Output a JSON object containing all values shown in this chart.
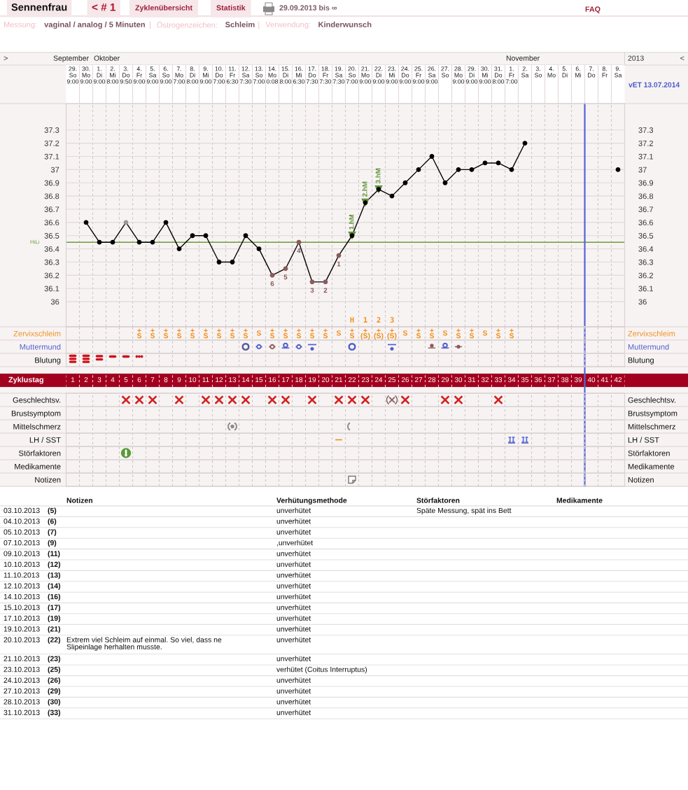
{
  "chart_data": [
    {
      "type": "other",
      "annotations": [
        "Sennenfrau",
        "< # 1",
        "Zyklenübersicht",
        "Statistik",
        "29.09.2013 bis ∞",
        "FAQ",
        "Messung:",
        "vaginal / analog / 5 Minuten",
        "|",
        "Östrogenzeichen:",
        "Schleim",
        "|",
        "Verwendung:",
        "Kinderwunsch"
      ]
    },
    {
      "type": "line",
      "categories": [
        "29.\nSo\n9:00",
        "30.\nMo\n9:00",
        "1.\nDi\n9:00",
        "2.\nMi\n8:00",
        "3.\nDo\n9:50",
        "4.\nFr\n9:00",
        "5.\nSa\n9:00",
        "6.\nSo\n9:00",
        "7.\nMo\n7:00",
        "8.\nDi\n8:00",
        "9.\nMi\n9:00",
        "10.\nDo\n7:00",
        "11.\nFr\n6:30",
        "12.\nSa\n7:30",
        "13.\nSo\n7:00",
        "14.\nMo\n0:08",
        "15.\nDi\n8:00",
        "16.\nMi\n6:30",
        "17.\nDo\n7:30",
        "18.\nFr\n7:30",
        "19.\nSa\n7:30",
        "20.\nSo\n7:00",
        "21.\nMo\n9:00",
        "22.\nDi\n9:00",
        "23.\nMi\n9:00",
        "24.\nDo\n9:00",
        "25.\nFr\n9:00",
        "26.\nSa\n9:00",
        "27.\nSo",
        "28.\nMo\n9:00",
        "29.\nDi\n9:00",
        "30.\nMi\n9:00",
        "31.\nDo\n8:00",
        "1.\nFr\n7:00",
        "2.\nSa",
        "3.\nSo",
        "4.\nMo",
        "5.\nDi",
        "6.\nMi",
        "7.\nDo",
        "8.\nFr",
        "9.\nSa"
      ],
      "ylim": [
        35.81,
        37.5
      ],
      "yticks": [
        36,
        36.1,
        36.2,
        36.3,
        36.4,
        36.5,
        36.6,
        36.7,
        36.8,
        36.9,
        37,
        37.1,
        37.2,
        37.3
      ],
      "y2lim": [
        35.81,
        37.5
      ],
      "y2ticks": [
        36,
        36.1,
        36.2,
        36.3,
        36.4,
        36.5,
        36.6,
        36.7,
        36.8,
        36.9,
        37,
        37.1,
        37.2,
        37.3
      ],
      "ref_lines": [
        {
          "axis": "y",
          "value": 36.45,
          "label": "HiLi",
          "color": "#6a9a3a"
        },
        {
          "axis": "x",
          "value": "7.\nDo",
          "color": "#5566d4"
        }
      ],
      "grid": "y",
      "marker": "circle",
      "series": [
        {
          "color": "#000000",
          "values": [
            null,
            36.6,
            36.45,
            36.45,
            36.6,
            36.45,
            36.45,
            36.6,
            36.4,
            36.5,
            36.5,
            36.3,
            36.3,
            36.5,
            36.4,
            36.2,
            36.25,
            36.45,
            36.15,
            36.15,
            36.35,
            36.5,
            36.75,
            36.85,
            36.8,
            36.9,
            37,
            37.1,
            36.9,
            37,
            37,
            37.05,
            37.05,
            37,
            37.2,
            null,
            null,
            null,
            null,
            null,
            null,
            37
          ],
          "colors": [
            "#000000",
            "#000000",
            "#000000",
            "#000000",
            "#999999",
            "#000000",
            "#000000",
            "#000000",
            "#000000",
            "#000000",
            "#000000",
            "#000000",
            "#000000",
            "#000000",
            "#000000",
            "#8c5a5a",
            "#8c5a5a",
            "#8c5a5a",
            "#8c5a5a",
            "#8c5a5a",
            "#8c5a5a",
            "#000000",
            "#000000",
            "#000000",
            "#000000",
            "#000000",
            "#000000",
            "#000000",
            "#000000",
            "#000000",
            "#000000",
            "#000000",
            "#000000",
            "#000000",
            "#000000",
            "#000000",
            "#000000",
            "#000000",
            "#000000",
            "#000000",
            "#000000",
            "#000000"
          ]
        },
        {
          "type": "scatter",
          "x": [
            "20.\nSo\n7:00",
            "21.\nMo\n9:00",
            "22.\nDi\n9:00"
          ],
          "values": [
            36.5,
            36.75,
            36.85
          ],
          "color": "#5f9436",
          "marker": "triangle"
        }
      ],
      "annotations": [
        {
          "text": "6",
          "x": "14.\nMo\n0:08",
          "y": 36.2
        },
        {
          "text": "5",
          "x": "15.\nDi\n8:00",
          "y": 36.25
        },
        {
          "text": "4",
          "x": "16.\nMi\n6:30",
          "y": 36.45
        },
        {
          "text": "3",
          "x": "17.\nDo\n7:30",
          "y": 36.15
        },
        {
          "text": "2",
          "x": "18.\nFr\n7:30",
          "y": 36.15
        },
        {
          "text": "1",
          "x": "19.\nSa\n7:30",
          "y": 36.35
        },
        {
          "text": "1.hM",
          "x": "20.\nSo\n7:00",
          "y": 36.5
        },
        {
          "text": "2.hM",
          "x": "21.\nMo\n9:00",
          "y": 36.75
        },
        {
          "text": "3.hM",
          "x": "22.\nDi\n9:00",
          "y": 36.85
        },
        ">",
        "September",
        "Oktober",
        "November",
        "2013",
        "<",
        "vET 13.07.2014",
        "H  1  2  3"
      ]
    },
    {
      "type": "heatmap",
      "categories": [
        null,
        null,
        null,
        null,
        null,
        null,
        null,
        null,
        null,
        null,
        null,
        null,
        null,
        null,
        null,
        null,
        null,
        null,
        null,
        null,
        null,
        null,
        null,
        null,
        null,
        null,
        null,
        null,
        null,
        null,
        null,
        null,
        null,
        null,
        null,
        null,
        null,
        null,
        null,
        null,
        null,
        null
      ],
      "y_categories": [
        "Zervixschleim",
        "Muttermund",
        "Blutung"
      ],
      "y2_categories": [
        "Zervixschleim",
        "Muttermund",
        "Blutung"
      ],
      "cells": [
        [
          null,
          null,
          null,
          null,
          null,
          null,
          null,
          null,
          null,
          null,
          null,
          null,
          null,
          null,
          null,
          null,
          null,
          null,
          null,
          null,
          null,
          null,
          null,
          null,
          null,
          null,
          null,
          null,
          null,
          null,
          null,
          null,
          null,
          null,
          null,
          null,
          null,
          null,
          null,
          null,
          null,
          null
        ],
        [
          null,
          null,
          null,
          null,
          null,
          null,
          null,
          null,
          null,
          null,
          null,
          null,
          null,
          null,
          null,
          null,
          null,
          null,
          null,
          null,
          null,
          null,
          null,
          null,
          null,
          null,
          null,
          null,
          null,
          null,
          null,
          null,
          null,
          null,
          null,
          null,
          null,
          null,
          null,
          null,
          null,
          null
        ],
        [
          null,
          null,
          null,
          null,
          null,
          null,
          null,
          null,
          null,
          null,
          null,
          null,
          null,
          null,
          null,
          null,
          null,
          null,
          null,
          null,
          null,
          null,
          null,
          null,
          null,
          null,
          null,
          null,
          null,
          null,
          null,
          null,
          null,
          null,
          null,
          null,
          null,
          null,
          null,
          null,
          null,
          null
        ]
      ],
      "cell_labels": [
        [
          null,
          null,
          null,
          null,
          null,
          "+\nS",
          "+\nS",
          "+\nS",
          "+\nS",
          "+\nS",
          "+\nS",
          "+\nS",
          "+\nS",
          "+\nS",
          "S",
          "+\nS",
          "+\nS",
          "+\nS",
          "+\nS",
          "+\nS",
          "S",
          "+\nS",
          "+\n(S)",
          "+\n(S)",
          "+\n(S)",
          "S",
          "+\nS",
          "+\nS",
          "S",
          "+\nS",
          "+\nS",
          "S",
          "+\nS",
          "+\nS",
          null,
          null,
          null,
          null,
          null,
          null,
          null,
          null
        ],
        [
          null,
          null,
          null,
          null,
          null,
          null,
          null,
          null,
          null,
          null,
          null,
          null,
          null,
          null,
          null,
          null,
          null,
          null,
          null,
          null,
          null,
          null,
          null,
          null,
          null,
          null,
          null,
          null,
          null,
          null,
          null,
          null,
          null,
          null,
          null,
          null,
          null,
          null,
          null,
          null,
          null,
          null
        ],
        [
          null,
          null,
          null,
          null,
          null,
          null,
          null,
          null,
          null,
          null,
          null,
          null,
          null,
          null,
          null,
          null,
          null,
          null,
          null,
          null,
          null,
          null,
          null,
          null,
          null,
          null,
          null,
          null,
          null,
          null,
          null,
          null,
          null,
          null,
          null,
          null,
          null,
          null,
          null,
          null,
          null,
          null
        ]
      ]
    },
    {
      "type": "heatmap",
      "xlabel": "Zyklustag",
      "categories": [
        "1",
        "2",
        "3",
        "4",
        "5",
        "6",
        "7",
        "8",
        "9",
        "10",
        "11",
        "12",
        "13",
        "14",
        "15",
        "16",
        "17",
        "18",
        "19",
        "20",
        "21",
        "22",
        "23",
        "24",
        "25",
        "26",
        "27",
        "28",
        "29",
        "30",
        "31",
        "32",
        "33",
        "34",
        "35",
        "36",
        "37",
        "38",
        "39",
        "40",
        "41",
        "42"
      ],
      "y_categories": [
        "Geschlechtsv.",
        "Brustsymptom",
        "Mittelschmerz",
        "LH / SST",
        "Störfaktoren",
        "Medikamente",
        "Notizen"
      ],
      "y2_categories": [
        "Geschlechtsv.",
        "Brustsymptom",
        "Mittelschmerz",
        "LH / SST",
        "Störfaktoren",
        "Medikamente",
        "Notizen"
      ],
      "cells": [
        [
          null,
          null,
          null,
          null,
          null,
          null,
          null,
          null,
          null,
          null,
          null,
          null,
          null,
          null,
          null,
          null,
          null,
          null,
          null,
          null,
          null,
          null,
          null,
          null,
          null,
          null,
          null,
          null,
          null,
          null,
          null,
          null,
          null,
          null,
          null,
          null,
          null,
          null,
          null,
          null,
          null,
          null
        ],
        [
          null,
          null,
          null,
          null,
          null,
          null,
          null,
          null,
          null,
          null,
          null,
          null,
          null,
          null,
          null,
          null,
          null,
          null,
          null,
          null,
          null,
          null,
          null,
          null,
          null,
          null,
          null,
          null,
          null,
          null,
          null,
          null,
          null,
          null,
          null,
          null,
          null,
          null,
          null,
          null,
          null,
          null
        ],
        [
          null,
          null,
          null,
          null,
          null,
          null,
          null,
          null,
          null,
          null,
          null,
          null,
          null,
          null,
          null,
          null,
          null,
          null,
          null,
          null,
          null,
          null,
          null,
          null,
          null,
          null,
          null,
          null,
          null,
          null,
          null,
          null,
          null,
          null,
          null,
          null,
          null,
          null,
          null,
          null,
          null,
          null
        ],
        [
          null,
          null,
          null,
          null,
          null,
          null,
          null,
          null,
          null,
          null,
          null,
          null,
          null,
          null,
          null,
          null,
          null,
          null,
          null,
          null,
          null,
          null,
          null,
          null,
          null,
          null,
          null,
          null,
          null,
          null,
          null,
          null,
          null,
          null,
          null,
          null,
          null,
          null,
          null,
          null,
          null,
          null
        ],
        [
          null,
          null,
          null,
          null,
          null,
          null,
          null,
          null,
          null,
          null,
          null,
          null,
          null,
          null,
          null,
          null,
          null,
          null,
          null,
          null,
          null,
          null,
          null,
          null,
          null,
          null,
          null,
          null,
          null,
          null,
          null,
          null,
          null,
          null,
          null,
          null,
          null,
          null,
          null,
          null,
          null,
          null
        ],
        [
          null,
          null,
          null,
          null,
          null,
          null,
          null,
          null,
          null,
          null,
          null,
          null,
          null,
          null,
          null,
          null,
          null,
          null,
          null,
          null,
          null,
          null,
          null,
          null,
          null,
          null,
          null,
          null,
          null,
          null,
          null,
          null,
          null,
          null,
          null,
          null,
          null,
          null,
          null,
          null,
          null,
          null
        ],
        [
          null,
          null,
          null,
          null,
          null,
          null,
          null,
          null,
          null,
          null,
          null,
          null,
          null,
          null,
          null,
          null,
          null,
          null,
          null,
          null,
          null,
          null,
          null,
          null,
          null,
          null,
          null,
          null,
          null,
          null,
          null,
          null,
          null,
          null,
          null,
          null,
          null,
          null,
          null,
          null,
          null,
          null
        ]
      ]
    },
    {
      "type": "other",
      "categories": [
        null,
        null,
        "Notizen",
        "Verhütungsmethode",
        "Störfaktoren",
        "Medikamente"
      ],
      "cell_labels": [
        [
          "03.10.2013",
          "(5)",
          null,
          "unverhütet",
          "Späte Messung, spät ins Bett",
          null
        ],
        [
          "04.10.2013",
          "(6)",
          null,
          "unverhütet",
          null,
          null
        ],
        [
          "05.10.2013",
          "(7)",
          null,
          "unverhütet",
          null,
          null
        ],
        [
          "07.10.2013",
          "(9)",
          null,
          ",unverhütet",
          null,
          null
        ],
        [
          "09.10.2013",
          "(11)",
          null,
          "unverhütet",
          null,
          null
        ],
        [
          "10.10.2013",
          "(12)",
          null,
          "unverhütet",
          null,
          null
        ],
        [
          "11.10.2013",
          "(13)",
          null,
          "unverhütet",
          null,
          null
        ],
        [
          "12.10.2013",
          "(14)",
          null,
          "unverhütet",
          null,
          null
        ],
        [
          "14.10.2013",
          "(16)",
          null,
          "unverhütet",
          null,
          null
        ],
        [
          "15.10.2013",
          "(17)",
          null,
          "unverhütet",
          null,
          null
        ],
        [
          "17.10.2013",
          "(19)",
          null,
          "unverhütet",
          null,
          null
        ],
        [
          "19.10.2013",
          "(21)",
          null,
          "unverhütet",
          null,
          null
        ],
        [
          "20.10.2013",
          "(22)",
          "Extrem viel Schleim auf einmal. So viel, dass ne\nSlipeinlage herhalten musste.",
          "unverhütet",
          null,
          null
        ],
        [
          "21.10.2013",
          "(23)",
          null,
          "unverhütet",
          null,
          null
        ],
        [
          "23.10.2013",
          "(25)",
          null,
          "verhütet (Coitus Interruptus)",
          null,
          null
        ],
        [
          "24.10.2013",
          "(26)",
          null,
          "unverhütet",
          null,
          null
        ],
        [
          "27.10.2013",
          "(29)",
          null,
          "unverhütet",
          null,
          null
        ],
        [
          "28.10.2013",
          "(30)",
          null,
          "unverhütet",
          null,
          null
        ],
        [
          "31.10.2013",
          "(33)",
          null,
          "unverhütet",
          null,
          null
        ]
      ]
    }
  ]
}
